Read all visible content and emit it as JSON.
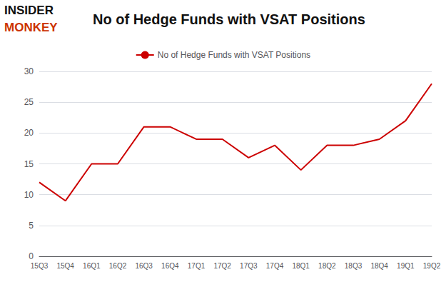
{
  "chart_data": {
    "type": "line",
    "title": "No of Hedge Funds with VSAT Positions",
    "categories": [
      "15Q3",
      "15Q4",
      "16Q1",
      "16Q2",
      "16Q3",
      "16Q4",
      "17Q1",
      "17Q2",
      "17Q3",
      "17Q4",
      "18Q1",
      "18Q2",
      "18Q3",
      "18Q4",
      "19Q1",
      "19Q2"
    ],
    "series": [
      {
        "name": "No of Hedge Funds with VSAT Positions",
        "color": "#cc0000",
        "values": [
          12,
          9,
          15,
          15,
          21,
          21,
          19,
          19,
          16,
          18,
          14,
          18,
          18,
          19,
          22,
          28
        ]
      }
    ],
    "ylim": [
      0,
      30
    ],
    "yticks": [
      0,
      5,
      10,
      15,
      20,
      25,
      30
    ],
    "grid": true,
    "legend": "top",
    "annotations": [
      {
        "text": "INSIDER",
        "color": "#111111"
      },
      {
        "text": "MONKEY",
        "color": "#cc3300"
      }
    ]
  }
}
